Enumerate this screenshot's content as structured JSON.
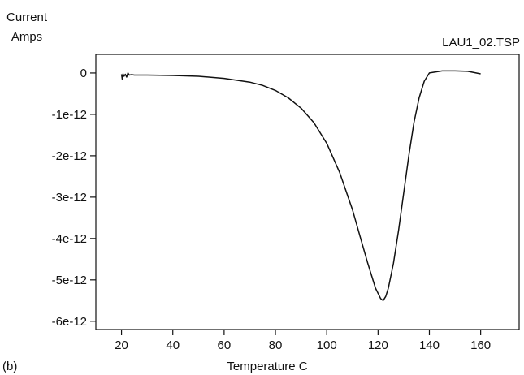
{
  "chart_data": {
    "type": "line",
    "panel_label": "(b)",
    "file_label": "LAU1_02.TSP",
    "ylabel_lines": [
      "Current",
      "Amps"
    ],
    "xlabel": "Temperature C",
    "xlim": [
      10,
      175
    ],
    "ylim": [
      -6.2e-12,
      4.5e-13
    ],
    "x_ticks": [
      20,
      40,
      60,
      80,
      100,
      120,
      140,
      160
    ],
    "y_ticks": [
      {
        "value": 0,
        "label": "0"
      },
      {
        "value": -1e-12,
        "label": "-1e-12"
      },
      {
        "value": -2e-12,
        "label": "-2e-12"
      },
      {
        "value": -3e-12,
        "label": "-3e-12"
      },
      {
        "value": -4e-12,
        "label": "-4e-12"
      },
      {
        "value": -5e-12,
        "label": "-5e-12"
      },
      {
        "value": -6e-12,
        "label": "-6e-12"
      }
    ],
    "grid": false,
    "series": [
      {
        "x": [
          20,
          20.3,
          20.6,
          21,
          21.5,
          22,
          22.5,
          23,
          24,
          25,
          30,
          40,
          50,
          60,
          70,
          75,
          80,
          85,
          90,
          95,
          100,
          105,
          110,
          113,
          116,
          119,
          121,
          122,
          123,
          124,
          126,
          128,
          130,
          132,
          134,
          136,
          138,
          140,
          145,
          150,
          155,
          160
        ],
        "y": [
          -3e-14,
          -1.5e-13,
          -2e-14,
          -8e-14,
          -3e-14,
          -1e-13,
          0.0,
          -5e-14,
          -4e-14,
          -5e-14,
          -5e-14,
          -6e-14,
          -8e-14,
          -1.3e-13,
          -2.2e-13,
          -3e-13,
          -4.2e-13,
          -6e-13,
          -8.5e-13,
          -1.2e-12,
          -1.7e-12,
          -2.4e-12,
          -3.3e-12,
          -3.95e-12,
          -4.6e-12,
          -5.2e-12,
          -5.45e-12,
          -5.5e-12,
          -5.4e-12,
          -5.2e-12,
          -4.6e-12,
          -3.8e-12,
          -2.9e-12,
          -2e-12,
          -1.2e-12,
          -6e-13,
          -2e-13,
          0.0,
          5e-14,
          5e-14,
          4e-14,
          -2e-14
        ]
      }
    ]
  }
}
